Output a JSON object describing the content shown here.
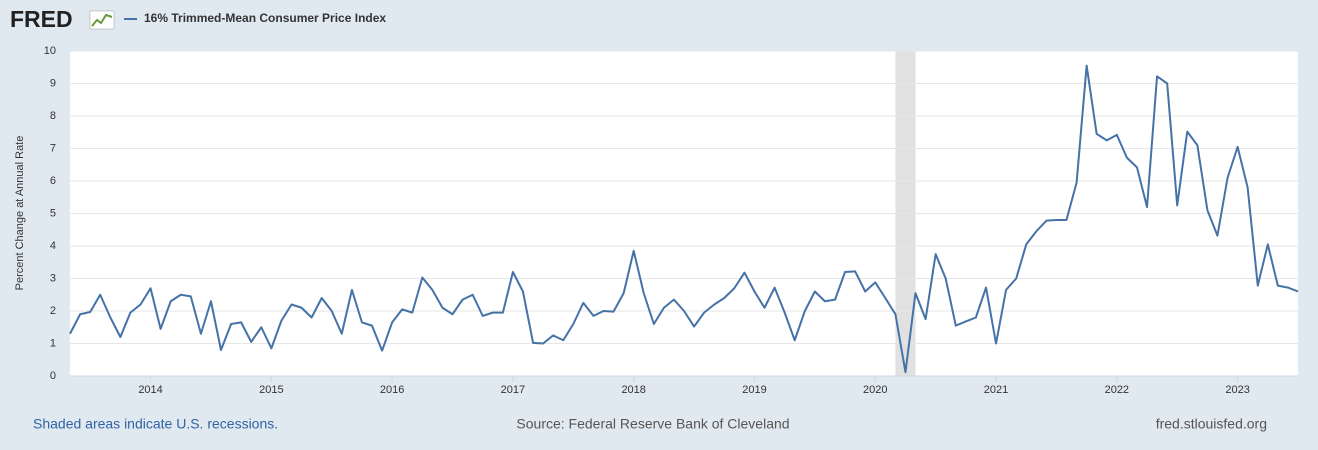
{
  "brand": "FRED",
  "chart_data": {
    "type": "line",
    "y_label": "Percent Change at Annual Rate",
    "series": [
      {
        "name": "16% Trimmed-Mean Consumer Price Index",
        "color": "#4572a7",
        "values": [
          1.3,
          1.9,
          1.97,
          2.5,
          1.8,
          1.2,
          1.95,
          2.2,
          2.7,
          1.45,
          2.3,
          2.5,
          2.45,
          1.3,
          2.3,
          0.8,
          1.6,
          1.65,
          1.05,
          1.5,
          0.85,
          1.7,
          2.2,
          2.1,
          1.8,
          2.4,
          2.0,
          1.3,
          2.65,
          1.65,
          1.55,
          0.78,
          1.65,
          2.05,
          1.95,
          3.03,
          2.65,
          2.1,
          1.9,
          2.35,
          2.5,
          1.85,
          1.95,
          1.95,
          3.2,
          2.6,
          1.02,
          1.0,
          1.25,
          1.1,
          1.6,
          2.25,
          1.85,
          2.0,
          1.98,
          2.55,
          3.85,
          2.55,
          1.6,
          2.1,
          2.35,
          2.0,
          1.52,
          1.95,
          2.2,
          2.4,
          2.7,
          3.18,
          2.6,
          2.1,
          2.72,
          1.95,
          1.1,
          2.0,
          2.6,
          2.3,
          2.35,
          3.2,
          3.22,
          2.6,
          2.88,
          2.4,
          1.9,
          0.12,
          2.55,
          1.75,
          3.75,
          3.0,
          1.55,
          1.68,
          1.8,
          2.72,
          1.0,
          2.65,
          3.0,
          4.05,
          4.45,
          4.78,
          4.8,
          4.8,
          5.95,
          9.55,
          7.45,
          7.25,
          7.42,
          6.72,
          6.42,
          5.2,
          9.22,
          9.0,
          5.25,
          7.52,
          7.1,
          5.1,
          4.32,
          6.1,
          7.05,
          5.8,
          2.78,
          4.05,
          2.78,
          2.72,
          2.6
        ]
      }
    ],
    "x": [
      2013.333,
      2013.417,
      2013.5,
      2013.583,
      2013.667,
      2013.75,
      2013.833,
      2013.917,
      2014.0,
      2014.083,
      2014.167,
      2014.25,
      2014.333,
      2014.417,
      2014.5,
      2014.583,
      2014.667,
      2014.75,
      2014.833,
      2014.917,
      2015.0,
      2015.083,
      2015.167,
      2015.25,
      2015.333,
      2015.417,
      2015.5,
      2015.583,
      2015.667,
      2015.75,
      2015.833,
      2015.917,
      2016.0,
      2016.083,
      2016.167,
      2016.25,
      2016.333,
      2016.417,
      2016.5,
      2016.583,
      2016.667,
      2016.75,
      2016.833,
      2016.917,
      2017.0,
      2017.083,
      2017.167,
      2017.25,
      2017.333,
      2017.417,
      2017.5,
      2017.583,
      2017.667,
      2017.75,
      2017.833,
      2017.917,
      2018.0,
      2018.083,
      2018.167,
      2018.25,
      2018.333,
      2018.417,
      2018.5,
      2018.583,
      2018.667,
      2018.75,
      2018.833,
      2018.917,
      2019.0,
      2019.083,
      2019.167,
      2019.25,
      2019.333,
      2019.417,
      2019.5,
      2019.583,
      2019.667,
      2019.75,
      2019.833,
      2019.917,
      2020.0,
      2020.083,
      2020.167,
      2020.25,
      2020.333,
      2020.417,
      2020.5,
      2020.583,
      2020.667,
      2020.75,
      2020.833,
      2020.917,
      2021.0,
      2021.083,
      2021.167,
      2021.25,
      2021.333,
      2021.417,
      2021.5,
      2021.583,
      2021.667,
      2021.75,
      2021.833,
      2021.917,
      2022.0,
      2022.083,
      2022.167,
      2022.25,
      2022.333,
      2022.417,
      2022.5,
      2022.583,
      2022.667,
      2022.75,
      2022.833,
      2022.917,
      2023.0,
      2023.083,
      2023.167,
      2023.25,
      2023.333,
      2023.417,
      2023.5
    ],
    "xlim": [
      2013.333,
      2023.5
    ],
    "xticks": [
      2014,
      2015,
      2016,
      2017,
      2018,
      2019,
      2020,
      2021,
      2022,
      2023
    ],
    "ylim": [
      0,
      10
    ],
    "yticks": [
      0,
      1,
      2,
      3,
      4,
      5,
      6,
      7,
      8,
      9,
      10
    ],
    "grid": true,
    "recessions": [
      [
        2020.167,
        2020.333
      ]
    ],
    "recession_color": "#e1e1e1"
  },
  "footer": {
    "note": "Shaded areas indicate U.S. recessions.",
    "source": "Source: Federal Reserve Bank of Cleveland",
    "site": "fred.stlouisfed.org"
  }
}
